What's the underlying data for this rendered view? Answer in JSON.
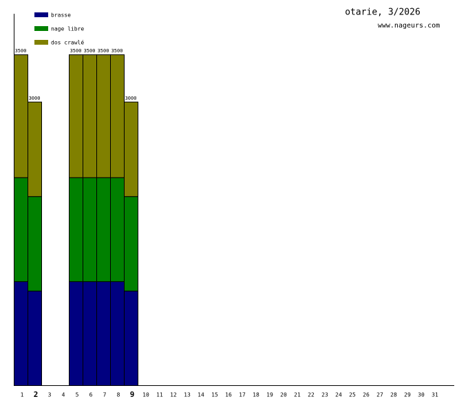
{
  "chart_data": {
    "type": "stacked_bar",
    "title": "otarie, 3/2026",
    "subtitle": "www.nageurs.com",
    "categories": [
      "1",
      "2",
      "3",
      "4",
      "5",
      "6",
      "7",
      "8",
      "9",
      "10",
      "11",
      "12",
      "13",
      "14",
      "15",
      "16",
      "17",
      "18",
      "19",
      "20",
      "21",
      "22",
      "23",
      "24",
      "25",
      "26",
      "27",
      "28",
      "29",
      "30",
      "31"
    ],
    "bold_categories": [
      1,
      8
    ],
    "series": [
      {
        "name": "brasse",
        "color": "#000080",
        "values": [
          1100,
          1000,
          null,
          null,
          1100,
          1100,
          1100,
          1100,
          1000,
          null,
          null,
          null,
          null,
          null,
          null,
          null,
          null,
          null,
          null,
          null,
          null,
          null,
          null,
          null,
          null,
          null,
          null,
          null,
          null,
          null,
          null
        ]
      },
      {
        "name": "nage libre",
        "color": "#008000",
        "values": [
          1100,
          1000,
          null,
          null,
          1100,
          1100,
          1100,
          1100,
          1000,
          null,
          null,
          null,
          null,
          null,
          null,
          null,
          null,
          null,
          null,
          null,
          null,
          null,
          null,
          null,
          null,
          null,
          null,
          null,
          null,
          null,
          null
        ]
      },
      {
        "name": "dos crawlé",
        "color": "#808000",
        "values": [
          1300,
          1000,
          null,
          null,
          1300,
          1300,
          1300,
          1300,
          1000,
          null,
          null,
          null,
          null,
          null,
          null,
          null,
          null,
          null,
          null,
          null,
          null,
          null,
          null,
          null,
          null,
          null,
          null,
          null,
          null,
          null,
          null
        ]
      }
    ],
    "totals": [
      3500,
      3000,
      null,
      null,
      3500,
      3500,
      3500,
      3500,
      3000,
      null,
      null,
      null,
      null,
      null,
      null,
      null,
      null,
      null,
      null,
      null,
      null,
      null,
      null,
      null,
      null,
      null,
      null,
      null,
      null,
      null,
      null
    ],
    "ylim": [
      0,
      3930
    ]
  }
}
